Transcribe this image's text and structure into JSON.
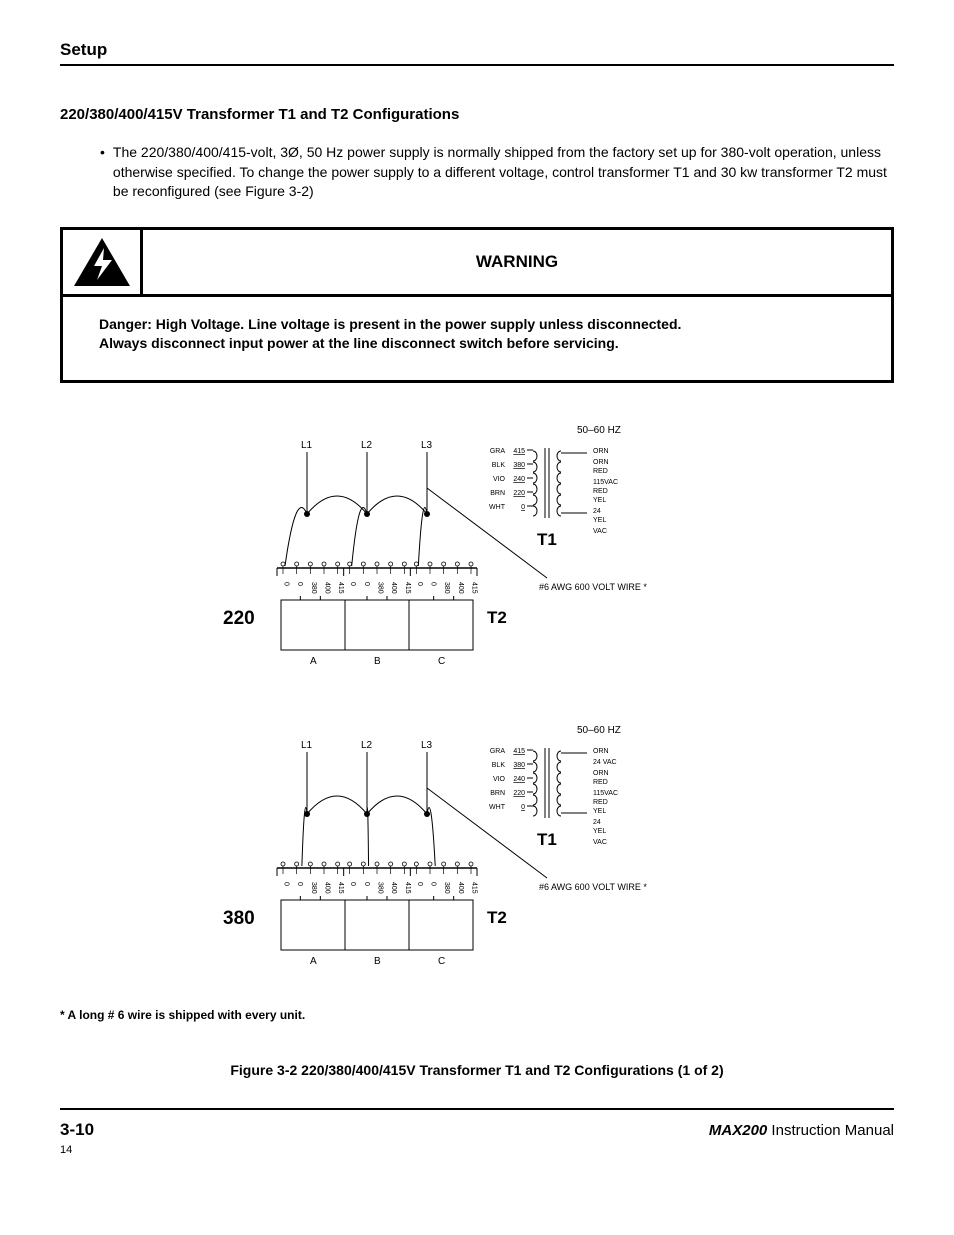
{
  "header": {
    "section": "Setup"
  },
  "title": "220/380/400/415V Transformer T1 and T2 Configurations",
  "bullet": "The 220/380/400/415-volt, 3Ø, 50 Hz power supply is normally shipped from the factory set up for 380-volt operation, unless otherwise specified. To change the power supply to a different voltage, control transformer T1 and 30 kw transformer T2 must be reconfigured (see Figure 3-2)",
  "warning": {
    "label": "WARNING",
    "body_line1": "Danger:  High Voltage.  Line voltage is present in the power supply unless disconnected.",
    "body_line2": "Always disconnect input power at the line disconnect switch before servicing."
  },
  "diagrams": [
    {
      "voltage": "220",
      "t1": "T1",
      "t2": "T2"
    },
    {
      "voltage": "380",
      "t1": "T1",
      "t2": "T2"
    }
  ],
  "diagram_common": {
    "hz_label": "50–60 HZ",
    "lines": [
      "L1",
      "L2",
      "L3"
    ],
    "wire_note": "#6 AWG 600 VOLT WIRE *",
    "t1_left_labels": [
      "GRA",
      "BLK",
      "VIO",
      "BRN",
      "WHT"
    ],
    "t1_left_vals": [
      "415",
      "380",
      "240",
      "220",
      "0"
    ],
    "t1_right_first": [
      [
        "ORN"
      ],
      [
        "ORN",
        "RED"
      ],
      [
        "115VAC",
        "RED",
        "YEL"
      ],
      [
        "24",
        "YEL"
      ],
      [
        "VAC"
      ]
    ],
    "t1_right_second": [
      [
        "ORN"
      ],
      [
        "24 VAC"
      ],
      [
        "ORN",
        "RED"
      ],
      [
        "115VAC",
        "RED",
        "YEL"
      ],
      [
        "24",
        "YEL"
      ],
      [
        "VAC"
      ]
    ],
    "terminal_vals": [
      "0",
      "380",
      "400",
      "415"
    ],
    "bottom_letters": [
      "A",
      "B",
      "C"
    ]
  },
  "footnote": "*  A long # 6 wire is shipped with every unit.",
  "figure_caption": "Figure 3-2    220/380/400/415V Transformer T1 and T2  Configurations (1 of 2)",
  "footer": {
    "page": "3-10",
    "brand": "MAX200",
    "manual": "  Instruction Manual",
    "small_page": "14"
  },
  "colors": {
    "text": "#000000",
    "bg": "#ffffff",
    "stroke": "#000000"
  }
}
